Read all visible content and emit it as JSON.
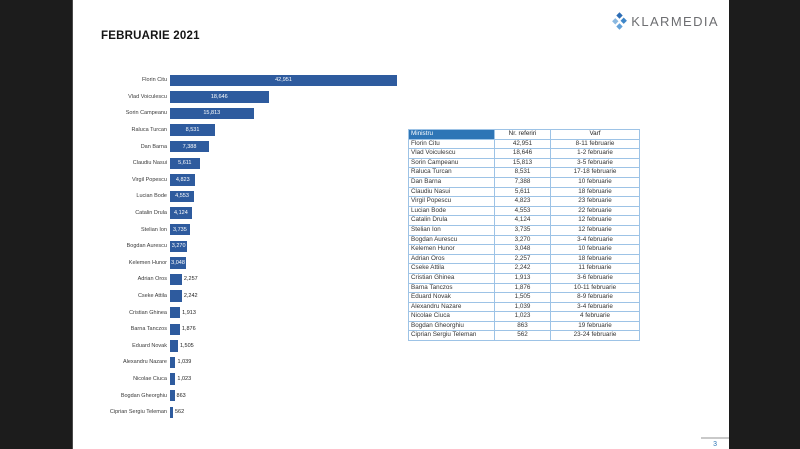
{
  "slide": {
    "title": "FEBRUARIE 2021",
    "logo_text": "KLARMEDIA",
    "page_number": "3"
  },
  "colors": {
    "letterbox": "#1c1c1c",
    "bar": "#2e5b9e",
    "table_header_bg": "#2e75b6",
    "table_border": "#9dc3e6",
    "accent_blue": "#2e75b6",
    "logo_gray": "#6d6e71"
  },
  "chart_data": {
    "type": "bar",
    "orientation": "horizontal",
    "title": "",
    "xlabel": "",
    "ylabel": "",
    "xlim": [
      0,
      45000
    ],
    "gridlines": false,
    "legend": false,
    "categories": [
      "Florin Citu",
      "Vlad Voiculescu",
      "Sorin Campeanu",
      "Raluca Turcan",
      "Dan Barna",
      "Claudiu Nasui",
      "Virgil Popescu",
      "Lucian Bode",
      "Catalin Drula",
      "Stelian Ion",
      "Bogdan Aurescu",
      "Kelemen Hunor",
      "Adrian Oros",
      "Cseke Attila",
      "Cristian Ghinea",
      "Barna Tanczos",
      "Eduard Novak",
      "Alexandru Nazare",
      "Nicolae Ciuca",
      "Bogdan Gheorghiu",
      "Ciprian Sergiu Teleman"
    ],
    "values": [
      42951,
      18646,
      15813,
      8531,
      7388,
      5611,
      4823,
      4553,
      4124,
      3735,
      3270,
      3048,
      2257,
      2242,
      1913,
      1876,
      1505,
      1039,
      1023,
      863,
      562
    ],
    "value_labels": [
      "42,951",
      "18,646",
      "15,813",
      "8,531",
      "7,388",
      "5,611",
      "4,823",
      "4,553",
      "4,124",
      "3,735",
      "3,270",
      "3,048",
      "2,257",
      "2,242",
      "1,913",
      "1,876",
      "1,505",
      "1,039",
      "1,023",
      "863",
      "562"
    ],
    "inside_label_min_value": 3048
  },
  "table": {
    "headers": [
      "Ministru",
      "Nr. referiri",
      "Varf"
    ],
    "rows": [
      [
        "Florin Citu",
        "42,951",
        "8-11 februarie"
      ],
      [
        "Vlad Voiculescu",
        "18,646",
        "1-2 februarie"
      ],
      [
        "Sorin Campeanu",
        "15,813",
        "3-5 februarie"
      ],
      [
        "Raluca Turcan",
        "8,531",
        "17-18 februarie"
      ],
      [
        "Dan Barna",
        "7,388",
        "10 februarie"
      ],
      [
        "Claudiu Nasui",
        "5,611",
        "18 februarie"
      ],
      [
        "Virgil Popescu",
        "4,823",
        "23 februarie"
      ],
      [
        "Lucian Bode",
        "4,553",
        "22 februarie"
      ],
      [
        "Catalin Drula",
        "4,124",
        "12 februarie"
      ],
      [
        "Stelian Ion",
        "3,735",
        "12 februarie"
      ],
      [
        "Bogdan Aurescu",
        "3,270",
        "3-4 februarie"
      ],
      [
        "Kelemen Hunor",
        "3,048",
        "10 februarie"
      ],
      [
        "Adrian Oros",
        "2,257",
        "18 februarie"
      ],
      [
        "Cseke Attila",
        "2,242",
        "11 februarie"
      ],
      [
        "Cristian Ghinea",
        "1,913",
        "3-6 februarie"
      ],
      [
        "Barna Tanczos",
        "1,876",
        "10-11 februarie"
      ],
      [
        "Eduard Novak",
        "1,505",
        "8-9 februarie"
      ],
      [
        "Alexandru Nazare",
        "1,039",
        "3-4 februarie"
      ],
      [
        "Nicolae Ciuca",
        "1,023",
        "4 februarie"
      ],
      [
        "Bogdan Gheorghiu",
        "863",
        "19 februarie"
      ],
      [
        "Ciprian Sergiu Teleman",
        "562",
        "23-24 februarie"
      ]
    ]
  }
}
